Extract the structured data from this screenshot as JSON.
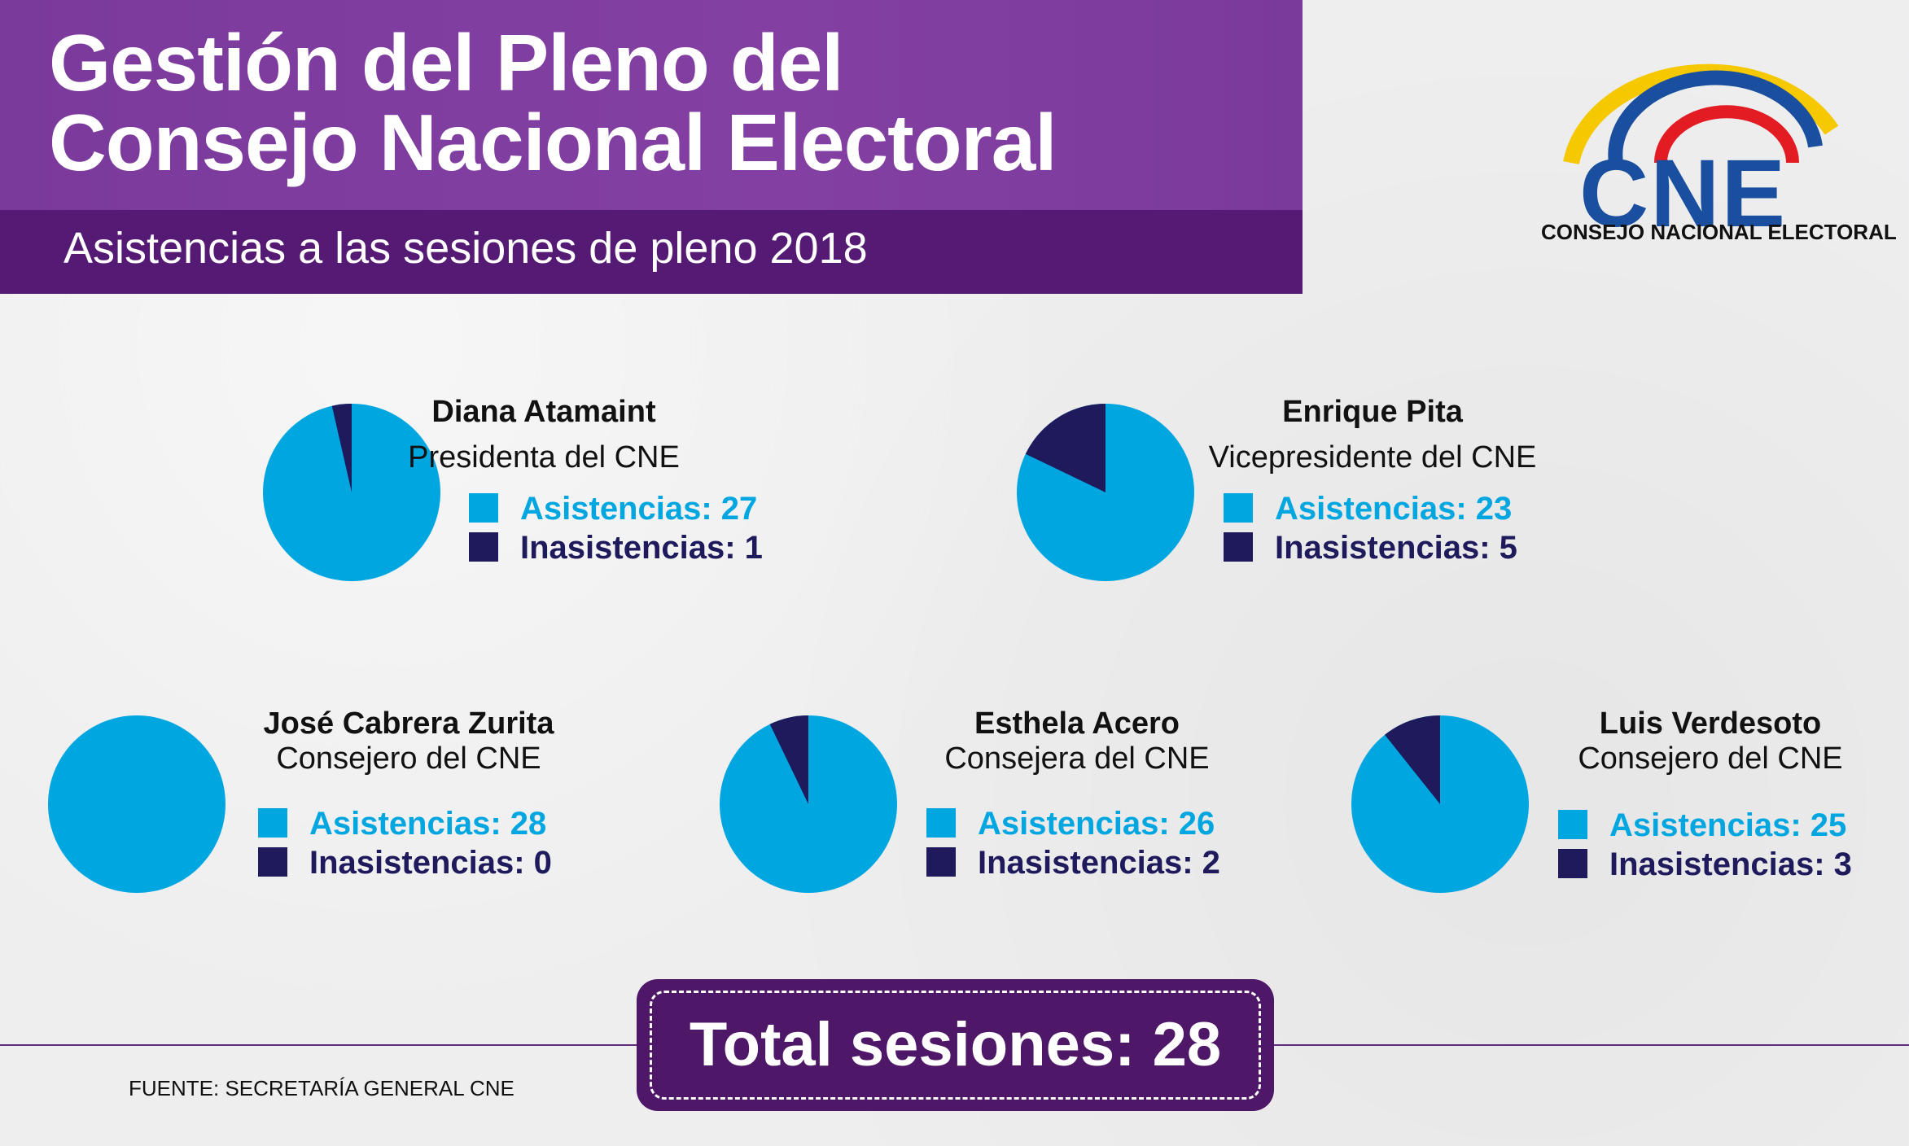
{
  "header": {
    "title_line1": "Gestión del Pleno del",
    "title_line2": "Consejo Nacional Electoral",
    "subtitle": "Asistencias a las sesiones de pleno 2018"
  },
  "logo": {
    "mark": "CNE",
    "name": "CONSEJO NACIONAL ELECTORAL"
  },
  "colors": {
    "asistencias": "#00a6e0",
    "inasistencias": "#1e1a5c",
    "header_purple": "#7d3c9f",
    "header_dark": "#551a74"
  },
  "chart_data": [
    {
      "type": "pie",
      "title": "Diana Atamaint",
      "subtitle": "Presidenta del CNE",
      "labels": [
        "Asistencias",
        "Inasistencias"
      ],
      "values": [
        27,
        1
      ],
      "legend": [
        "Asistencias: 27",
        "Inasistencias: 1"
      ]
    },
    {
      "type": "pie",
      "title": "Enrique Pita",
      "subtitle": "Vicepresidente del CNE",
      "labels": [
        "Asistencias",
        "Inasistencias"
      ],
      "values": [
        23,
        5
      ],
      "legend": [
        "Asistencias: 23",
        "Inasistencias: 5"
      ]
    },
    {
      "type": "pie",
      "title": "José Cabrera Zurita",
      "subtitle": "Consejero del CNE",
      "labels": [
        "Asistencias",
        "Inasistencias"
      ],
      "values": [
        28,
        0
      ],
      "legend": [
        "Asistencias: 28",
        "Inasistencias: 0"
      ]
    },
    {
      "type": "pie",
      "title": "Esthela Acero",
      "subtitle": "Consejera del CNE",
      "labels": [
        "Asistencias",
        "Inasistencias"
      ],
      "values": [
        26,
        2
      ],
      "legend": [
        "Asistencias: 26",
        "Inasistencias: 2"
      ]
    },
    {
      "type": "pie",
      "title": "Luis Verdesoto",
      "subtitle": "Consejero del CNE",
      "labels": [
        "Asistencias",
        "Inasistencias"
      ],
      "values": [
        25,
        3
      ],
      "legend": [
        "Asistencias: 25",
        "Inasistencias: 3"
      ]
    }
  ],
  "total": {
    "label": "Total sesiones: 28",
    "value": 28
  },
  "source": "FUENTE: SECRETARÍA GENERAL CNE"
}
